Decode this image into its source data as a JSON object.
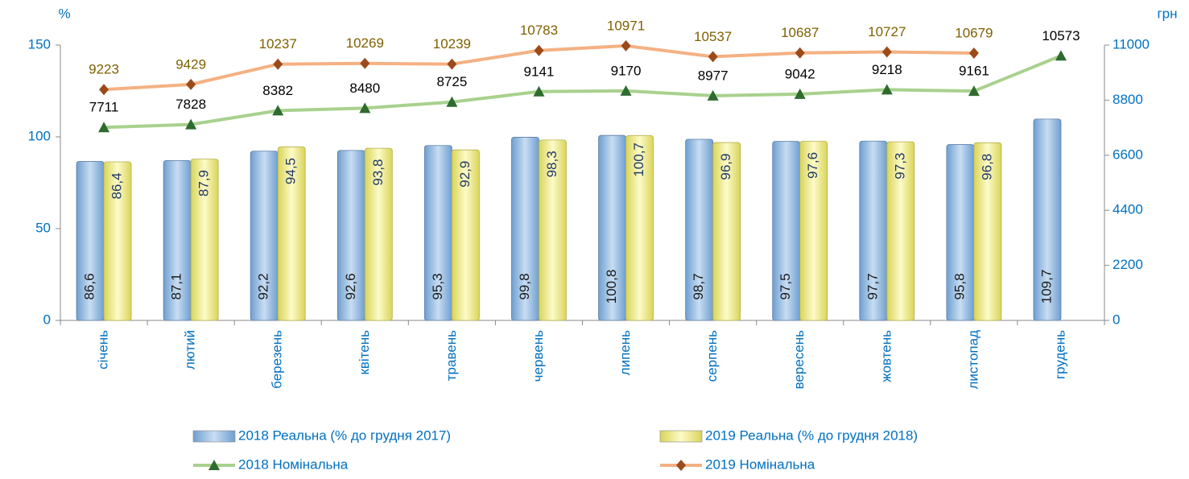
{
  "chart_data": {
    "type": "bar_line",
    "y_label": "%",
    "y2_label": "грн",
    "categories": [
      "січень",
      "лютий",
      "березень",
      "квітень",
      "травень",
      "червень",
      "липень",
      "серпень",
      "вересень",
      "жовтень",
      "листопад",
      "грудень"
    ],
    "ylim": [
      0,
      150
    ],
    "yticks": [
      0,
      50,
      100,
      150
    ],
    "y2lim": [
      0,
      11000
    ],
    "y2ticks": [
      0,
      2200,
      4400,
      6600,
      8800,
      11000
    ],
    "series": [
      {
        "name": "2018 Реальна (% до грудня 2017)",
        "type": "bar",
        "color": "#9dc3e6",
        "values": [
          86.6,
          87.1,
          92.2,
          92.6,
          95.3,
          99.8,
          100.8,
          98.7,
          97.5,
          97.7,
          95.8,
          109.7
        ],
        "value_labels": [
          "86,6",
          "87,1",
          "92,2",
          "92,6",
          "95,3",
          "99,8",
          "100,8",
          "98,7",
          "97,5",
          "97,7",
          "95,8",
          "109,7"
        ]
      },
      {
        "name": "2019 Реальна (% до грудня 2018)",
        "type": "bar",
        "color": "#f3f09a",
        "values": [
          86.4,
          87.9,
          94.5,
          93.8,
          92.9,
          98.3,
          100.7,
          96.9,
          97.6,
          97.3,
          96.8,
          null
        ],
        "value_labels": [
          "86,4",
          "87,9",
          "94,5",
          "93,8",
          "92,9",
          "98,3",
          "100,7",
          "96,9",
          "97,6",
          "97,3",
          "96,8",
          null
        ]
      },
      {
        "name": "2018 Номінальна",
        "type": "line",
        "axis": "y2",
        "color": "#a9d18e",
        "marker": "triangle",
        "marker_color": "#2e6b2e",
        "label_color": "#000000",
        "values": [
          7711,
          7828,
          8382,
          8480,
          8725,
          9141,
          9170,
          8977,
          9042,
          9218,
          9161,
          10573
        ]
      },
      {
        "name": "2019 Номінальна",
        "type": "line",
        "axis": "y2",
        "color": "#f4b183",
        "marker": "diamond",
        "marker_color": "#9c4a1a",
        "label_color": "#7f6000",
        "values": [
          9223,
          9429,
          10237,
          10269,
          10239,
          10783,
          10971,
          10537,
          10687,
          10727,
          10679,
          null
        ]
      }
    ]
  }
}
